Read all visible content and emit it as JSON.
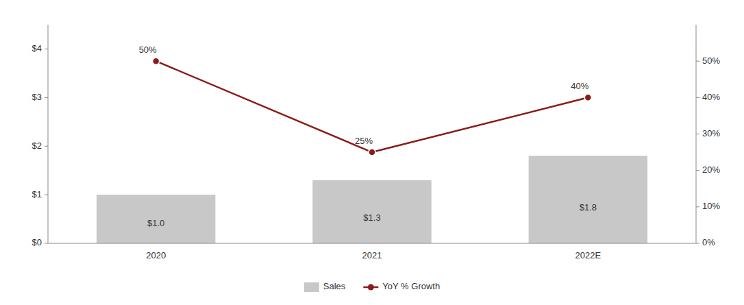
{
  "chart_data": {
    "type": "bar",
    "categories": [
      "2020",
      "2021",
      "2022E"
    ],
    "series": [
      {
        "name": "Sales",
        "type": "bar",
        "color": "#c8c8c8",
        "values": [
          1.0,
          1.3,
          1.8
        ],
        "value_labels": [
          "$1.0",
          "$1.3",
          "$1.8"
        ]
      },
      {
        "name": "YoY % Growth",
        "type": "line",
        "axis": "y2",
        "color": "#8b1a1a",
        "marker": "circle",
        "values": [
          50,
          25,
          40
        ],
        "value_labels": [
          "50%",
          "25%",
          "40%"
        ]
      }
    ],
    "ylim": [
      0,
      4.5
    ],
    "yticks": [
      {
        "value": 0,
        "label": "$0"
      },
      {
        "value": 1,
        "label": "$1"
      },
      {
        "value": 2,
        "label": "$2"
      },
      {
        "value": 3,
        "label": "$3"
      },
      {
        "value": 4,
        "label": "$4"
      }
    ],
    "y2lim": [
      0,
      60
    ],
    "y2ticks": [
      {
        "value": 0,
        "label": "0%"
      },
      {
        "value": 10,
        "label": "10%"
      },
      {
        "value": 20,
        "label": "20%"
      },
      {
        "value": 30,
        "label": "30%"
      },
      {
        "value": 40,
        "label": "40%"
      },
      {
        "value": 50,
        "label": "50%"
      }
    ],
    "grid": false,
    "legend": "bottom",
    "data_labels": true
  }
}
